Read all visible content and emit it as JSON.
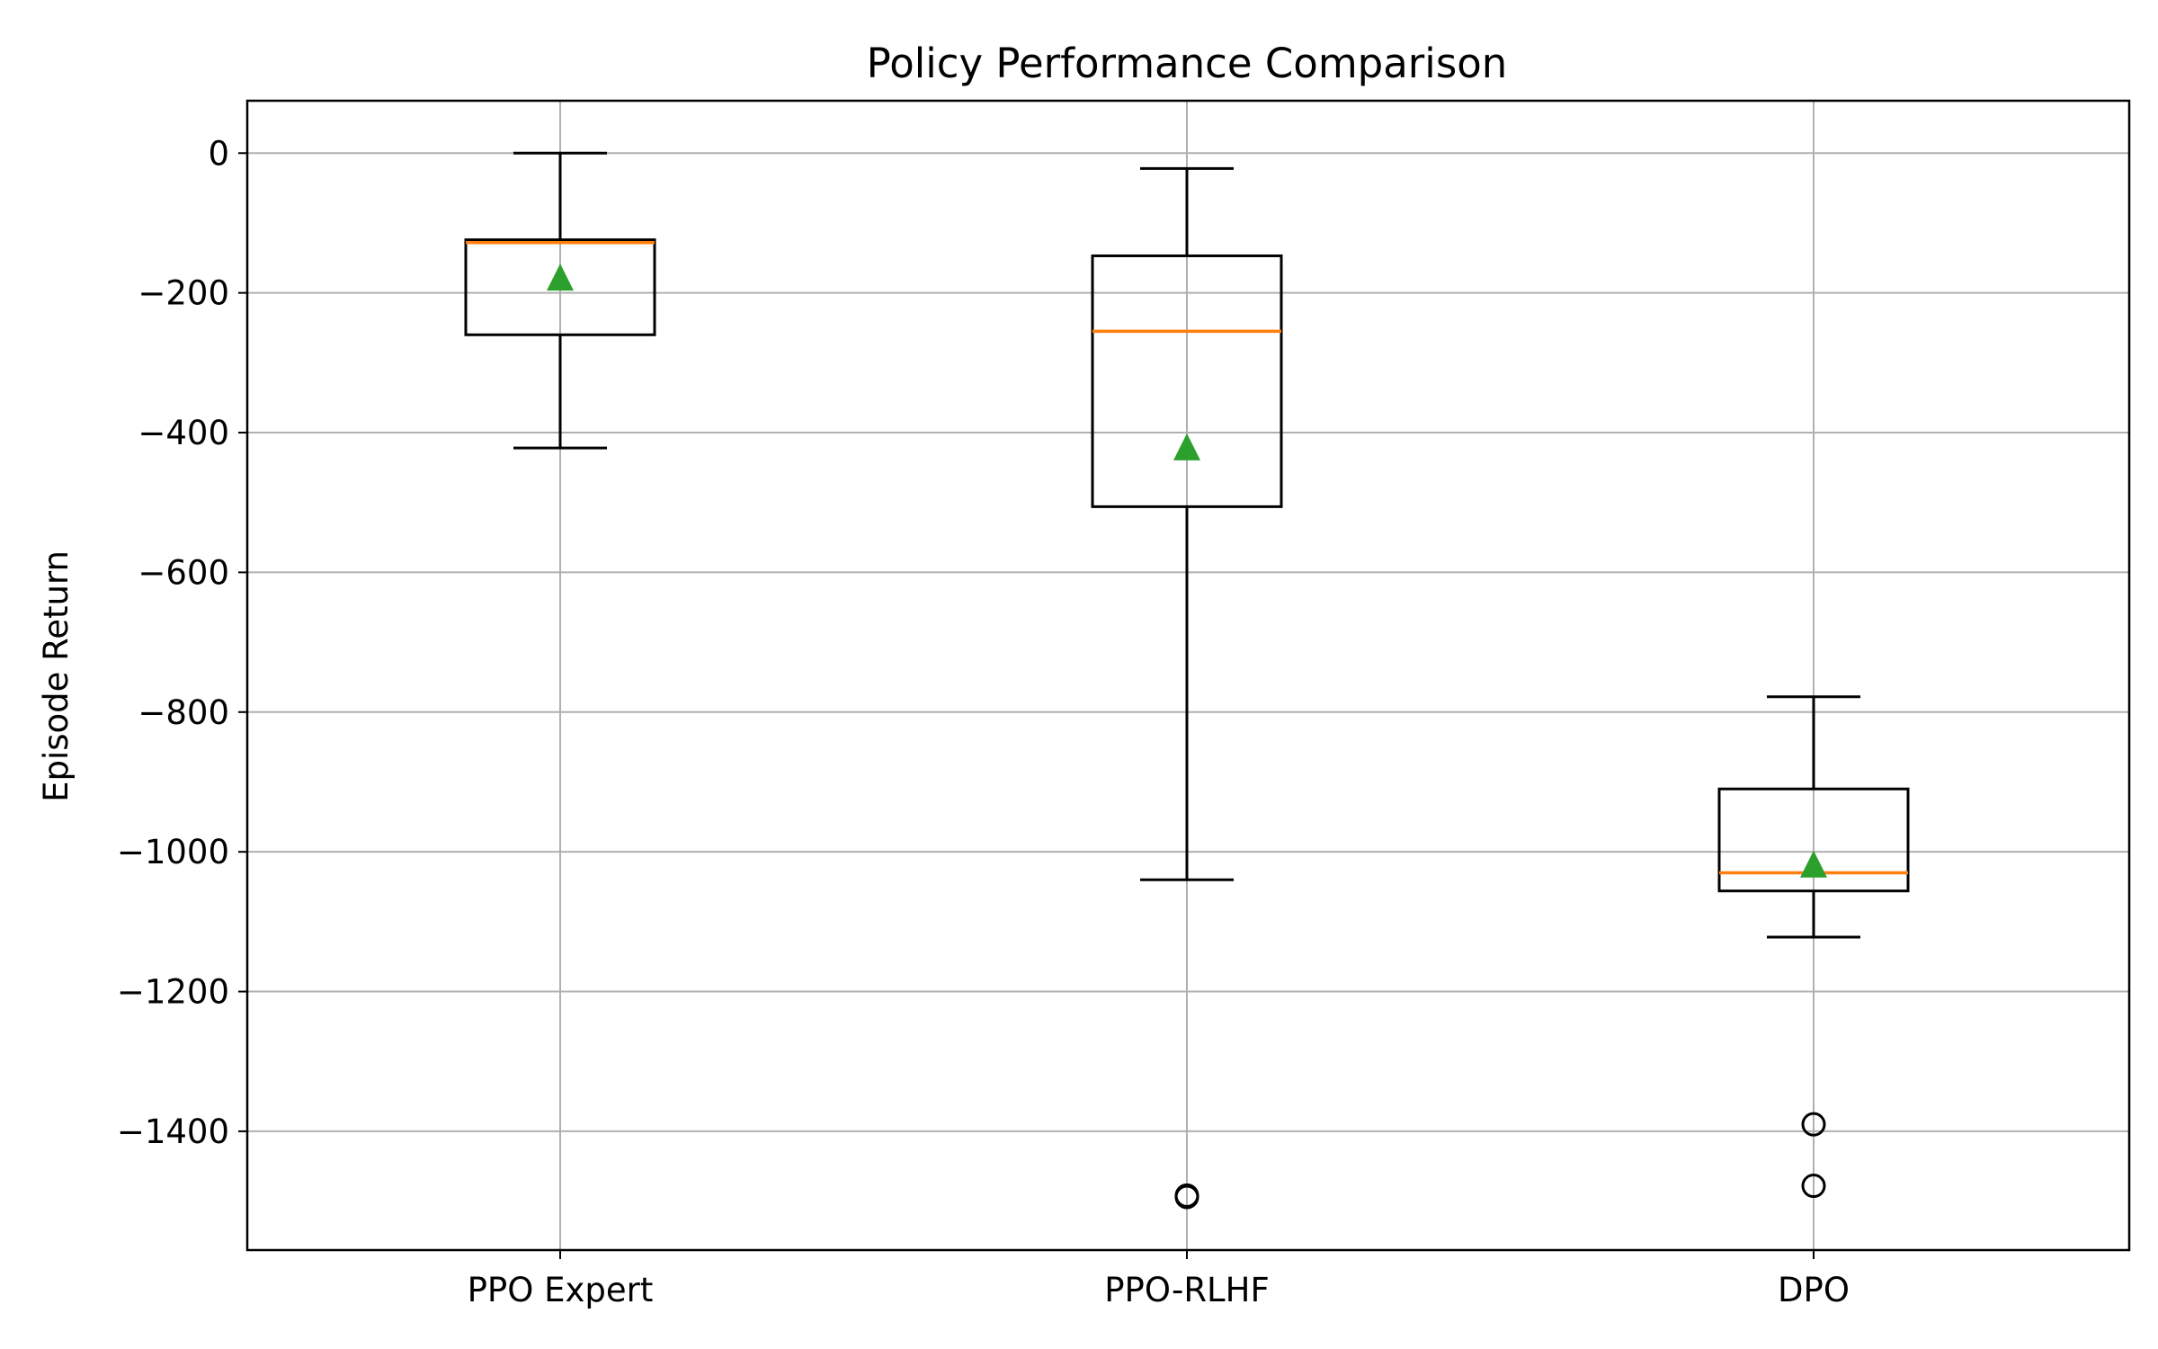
{
  "chart_data": {
    "type": "box",
    "title": "Policy Performance Comparison",
    "xlabel": "",
    "ylabel": "Episode Return",
    "ylim": [
      -1570,
      75
    ],
    "yticks": [
      0,
      -200,
      -400,
      -600,
      -800,
      -1000,
      -1200,
      -1400
    ],
    "ytick_labels": [
      "0",
      "−200",
      "−400",
      "−600",
      "−800",
      "−1000",
      "−1200",
      "−1400"
    ],
    "grid": true,
    "categories": [
      "PPO Expert",
      "PPO-RLHF",
      "DPO"
    ],
    "boxes": [
      {
        "name": "PPO Expert",
        "whisker_low": -422,
        "q1": -260,
        "median": -128,
        "q3": -124,
        "whisker_high": 0,
        "mean": -180,
        "outliers": []
      },
      {
        "name": "PPO-RLHF",
        "whisker_low": -1040,
        "q1": -506,
        "median": -255,
        "q3": -147,
        "whisker_high": -22,
        "mean": -423,
        "outliers": [
          -1492,
          -1494
        ]
      },
      {
        "name": "DPO",
        "whisker_low": -1122,
        "q1": -1056,
        "median": -1030,
        "q3": -910,
        "whisker_high": -778,
        "mean": -1020,
        "outliers": [
          -1390,
          -1478
        ]
      }
    ],
    "colors": {
      "box": "#000000",
      "median": "#ff7f0e",
      "mean": "#2ca02c",
      "grid": "#b0b0b0"
    }
  }
}
